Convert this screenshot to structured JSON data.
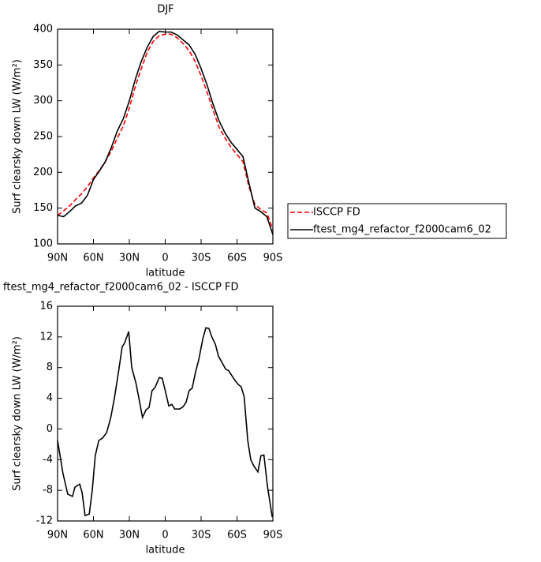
{
  "chart_data": [
    {
      "type": "line",
      "title": "DJF",
      "xlabel": "latitude",
      "ylabel": "Surf clearsky down LW (W/m²)",
      "x": [
        90,
        85,
        80,
        75,
        70,
        65,
        60,
        55,
        50,
        45,
        40,
        35,
        30,
        25,
        20,
        15,
        10,
        5,
        0,
        -5,
        -10,
        -15,
        -20,
        -25,
        -30,
        -35,
        -40,
        -45,
        -50,
        -55,
        -60,
        -65,
        -70,
        -75,
        -80,
        -85,
        -90
      ],
      "series": [
        {
          "name": "ISCCP FD",
          "color": "#ff0000",
          "line_style": "dashed",
          "values": [
            140,
            146,
            153,
            162,
            170,
            180,
            192,
            203,
            215,
            230,
            248,
            265,
            290,
            320,
            345,
            368,
            383,
            391,
            393,
            393,
            388,
            380,
            370,
            355,
            335,
            312,
            287,
            263,
            248,
            235,
            225,
            215,
            180,
            155,
            148,
            143,
            120
          ]
        },
        {
          "name": "ftest_mg4_refactor_f2000cam6_02",
          "color": "#000000",
          "line_style": "solid",
          "values": [
            140,
            138,
            145,
            153,
            157,
            168,
            190,
            202,
            215,
            235,
            258,
            275,
            300,
            330,
            355,
            375,
            390,
            397,
            396,
            396,
            392,
            385,
            378,
            365,
            345,
            322,
            295,
            272,
            255,
            242,
            232,
            222,
            185,
            150,
            145,
            138,
            113
          ]
        }
      ],
      "xlim": [
        90,
        -90
      ],
      "xticks": [
        {
          "value": 90,
          "label": "90N"
        },
        {
          "value": 60,
          "label": "60N"
        },
        {
          "value": 30,
          "label": "30N"
        },
        0,
        {
          "value": -30,
          "label": "30S"
        },
        {
          "value": -60,
          "label": "60S"
        },
        {
          "value": -90,
          "label": "90S"
        }
      ],
      "ylim": [
        100,
        400
      ],
      "yticks": [
        100,
        150,
        200,
        250,
        300,
        350,
        400
      ],
      "legend": "outside right"
    },
    {
      "type": "line",
      "title": "ftest_mg4_refactor_f2000cam6_02 - ISCCP FD",
      "xlabel": "latitude",
      "ylabel": "Surf clearsky down LW (W/m²)",
      "x": [
        90,
        85.5,
        81.5,
        77.5,
        75.5,
        71.5,
        69.5,
        67,
        63.5,
        61,
        58.5,
        55.5,
        52.5,
        49,
        45.5,
        42.5,
        39,
        36,
        34,
        30.5,
        28,
        24.5,
        22,
        19,
        16,
        13.5,
        11,
        8.5,
        5,
        2.5,
        0,
        -3,
        -5.5,
        -8,
        -12,
        -15,
        -17.5,
        -20,
        -22.5,
        -25.5,
        -28,
        -31.5,
        -34,
        -36.5,
        -39,
        -42,
        -44.5,
        -47,
        -50.5,
        -53,
        -55.5,
        -58.5,
        -61,
        -63.5,
        -66,
        -69,
        -71.5,
        -74,
        -77.5,
        -80,
        -82.5,
        -85.5,
        -89.5
      ],
      "series": [
        {
          "color": "#000000",
          "line_style": "solid",
          "values": [
            -1.5,
            -5.8,
            -8.5,
            -8.8,
            -7.6,
            -7.2,
            -8.3,
            -11.3,
            -11.1,
            -8,
            -3.5,
            -1.5,
            -1.2,
            -0.5,
            1.5,
            4,
            7.5,
            10.7,
            11.2,
            12.7,
            8,
            6,
            4,
            1.5,
            2.5,
            2.8,
            5,
            5.4,
            6.7,
            6.6,
            5,
            3,
            3.2,
            2.6,
            2.6,
            2.9,
            3.5,
            5,
            5.3,
            7.5,
            9,
            11.8,
            13.2,
            13.1,
            12,
            11,
            9.5,
            8.8,
            7.8,
            7.6,
            7,
            6.3,
            5.8,
            5.5,
            4.2,
            -1.5,
            -4,
            -4.8,
            -5.6,
            -3.5,
            -3.4,
            -7.5,
            -11.5
          ]
        }
      ],
      "xlim": [
        90,
        -90
      ],
      "xticks": [
        {
          "value": 90,
          "label": "90N"
        },
        {
          "value": 60,
          "label": "60N"
        },
        {
          "value": 30,
          "label": "30N"
        },
        0,
        {
          "value": -30,
          "label": "30S"
        },
        {
          "value": -60,
          "label": "60S"
        },
        {
          "value": -90,
          "label": "90S"
        }
      ],
      "ylim": [
        -12,
        16
      ],
      "yticks": [
        -12,
        -8,
        -4,
        0,
        4,
        8,
        12,
        16
      ]
    }
  ]
}
